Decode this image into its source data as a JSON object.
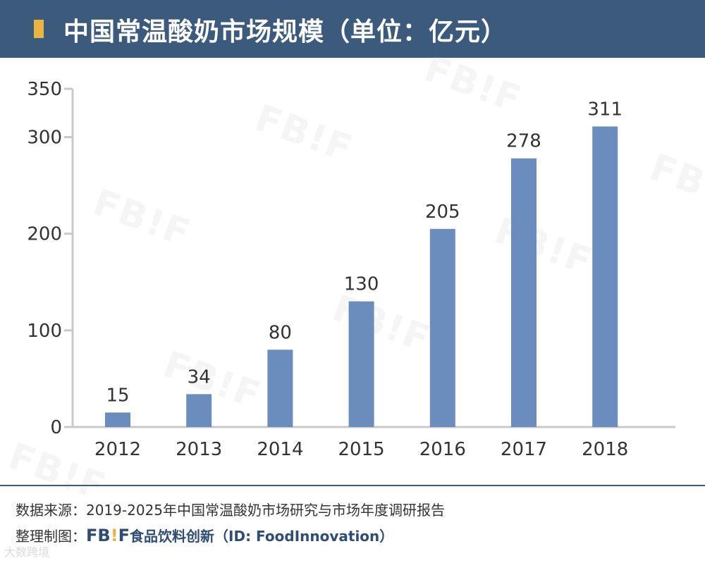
{
  "header": {
    "title": "中国常温酸奶市场规模（单位：亿元）"
  },
  "watermark": {
    "text": "FB!F"
  },
  "chart_data": {
    "type": "bar",
    "title": "中国常温酸奶市场规模（单位：亿元）",
    "categories": [
      "2012",
      "2013",
      "2014",
      "2015",
      "2016",
      "2017",
      "2018"
    ],
    "values": [
      15,
      34,
      80,
      130,
      205,
      278,
      311
    ],
    "data_labels": [
      "15",
      "34",
      "80",
      "130",
      "205",
      "278",
      "311"
    ],
    "yticks": [
      0,
      100,
      200,
      300,
      350
    ],
    "ylim": [
      0,
      350
    ],
    "xlabel": "",
    "ylabel": "",
    "grid": false,
    "bar_color": "#6a8dbe"
  },
  "footer": {
    "source": "数据来源：2019-2025年中国常温酸奶市场研究与市场年度调研报告",
    "made_by_prefix": "整理制图：",
    "brand_fb": "FB",
    "brand_bang": "!",
    "brand_f": "F",
    "brand_name": "食品饮料创新（ID: FoodInnovation）"
  },
  "corner_mark": "大数跨境"
}
